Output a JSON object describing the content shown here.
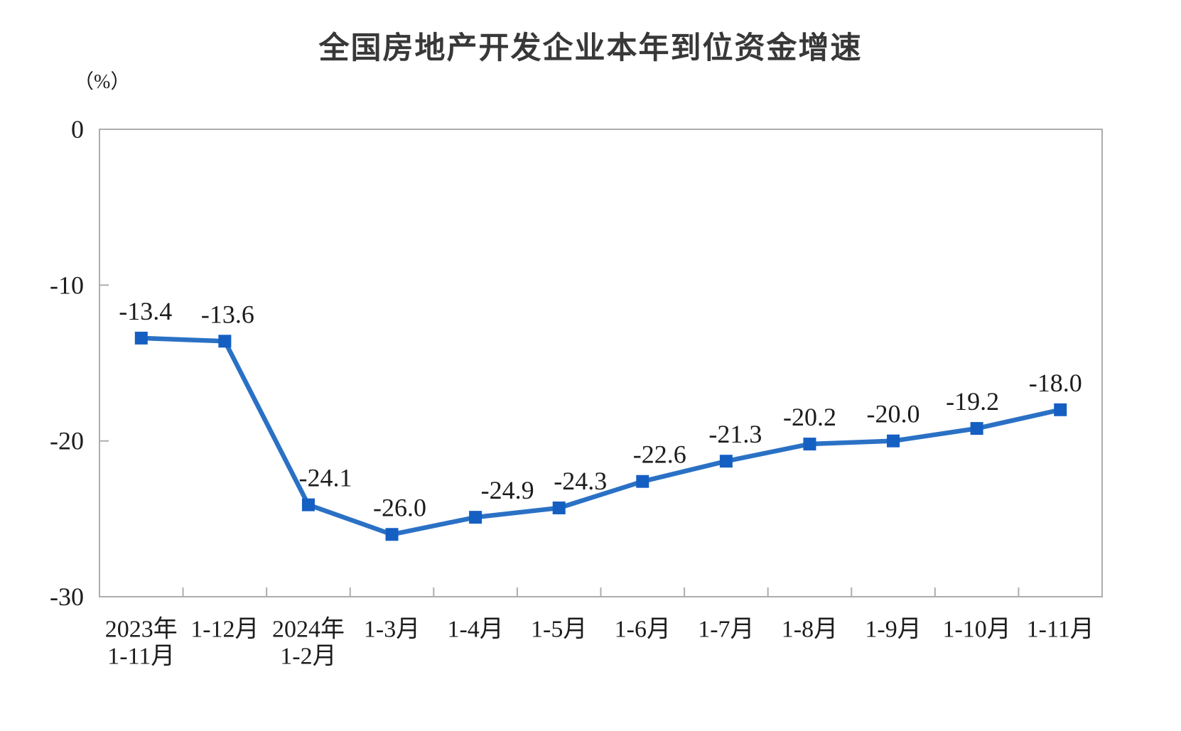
{
  "chart_data": {
    "type": "line",
    "title": "全国房地产开发企业本年到位资金增速",
    "unit_label": "（%）",
    "xlabel": "",
    "ylabel": "（%）",
    "categories": [
      "2023年\n1-11月",
      "1-12月",
      "2024年\n1-2月",
      "1-3月",
      "1-4月",
      "1-5月",
      "1-6月",
      "1-7月",
      "1-8月",
      "1-9月",
      "1-10月",
      "1-11月"
    ],
    "series": [
      {
        "name": "本年到位资金增速",
        "values": [
          -13.4,
          -13.6,
          -24.1,
          -26.0,
          -24.9,
          -24.3,
          -22.6,
          -21.3,
          -20.2,
          -20.0,
          -19.2,
          -18.0
        ],
        "data_labels": [
          "-13.4",
          "-13.6",
          "-24.1",
          "-26.0",
          "-24.9",
          "-24.3",
          "-22.6",
          "-21.3",
          "-20.2",
          "-20.0",
          "-19.2",
          "-18.0"
        ]
      }
    ],
    "ylim": [
      -30,
      0
    ],
    "yticks": [
      0,
      -10,
      -20,
      -30
    ],
    "ytick_labels": [
      "0",
      "-10",
      "-20",
      "-30"
    ],
    "grid": false,
    "legend": "none",
    "marker": "square",
    "colors": {
      "line": "#2A71C5",
      "marker": "#155FC2",
      "axis": "#ADADAD",
      "text": "#1C1C1C",
      "title": "#383838"
    }
  }
}
